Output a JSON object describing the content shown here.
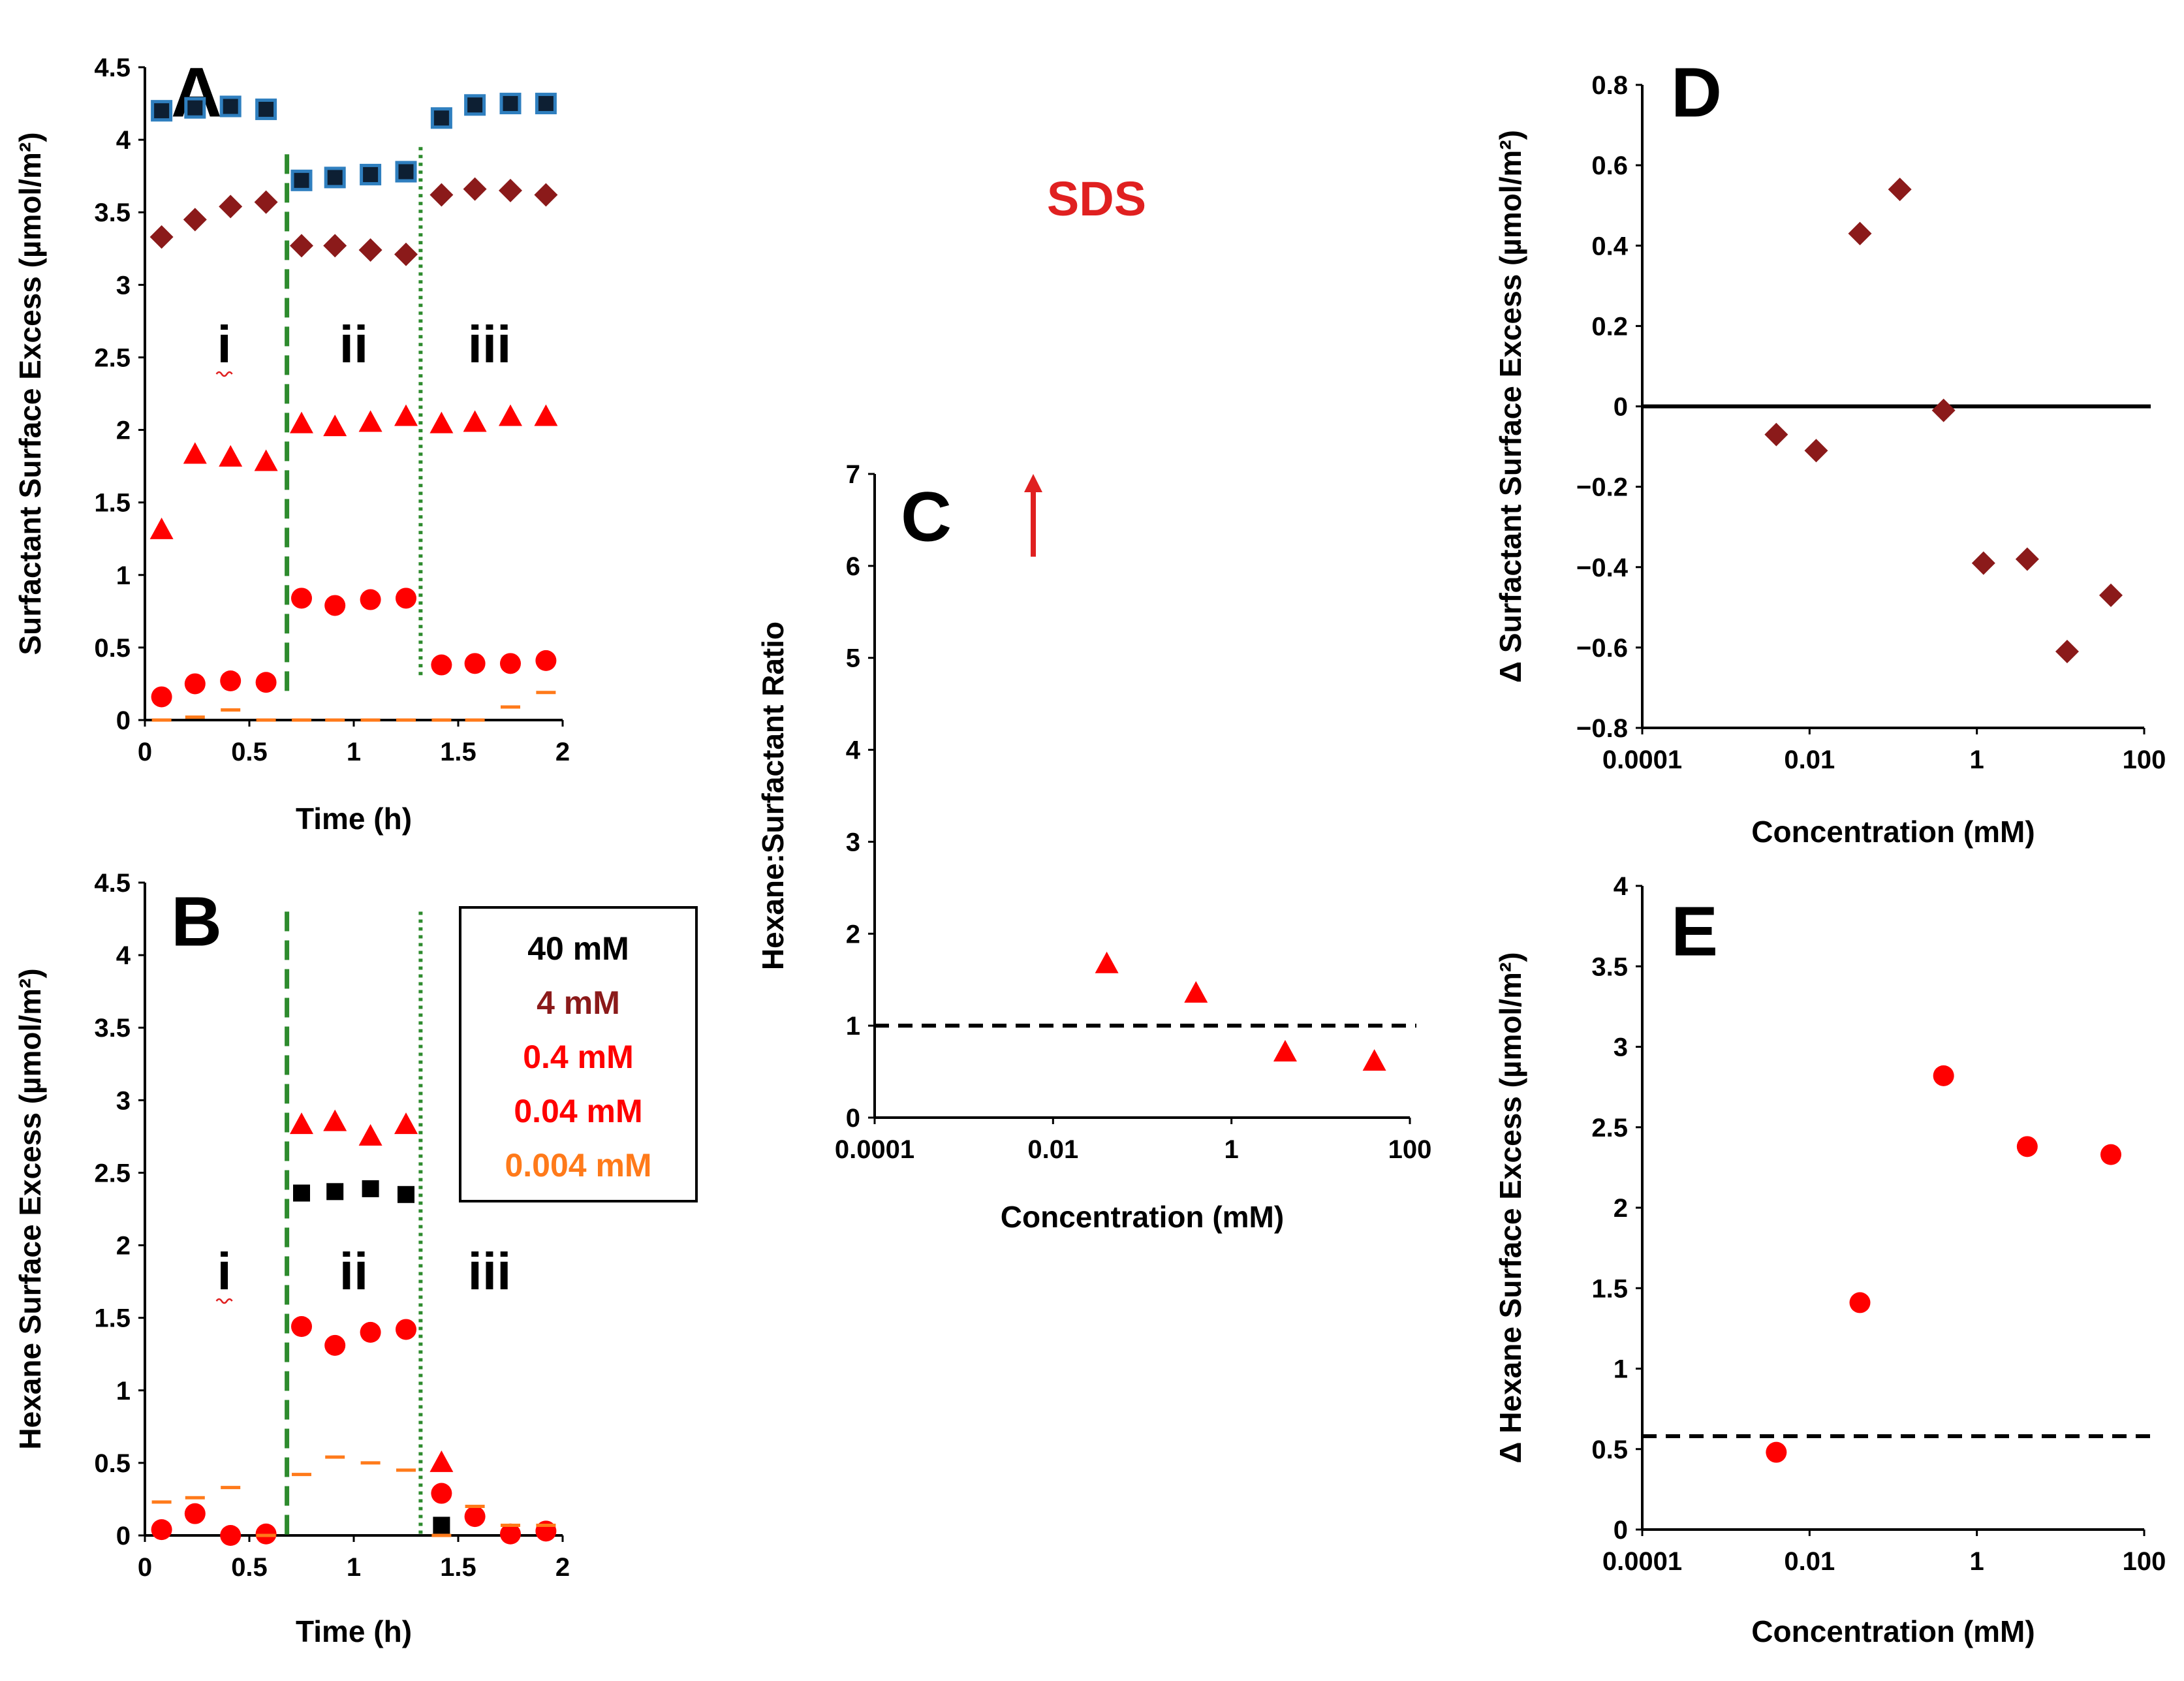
{
  "colors": {
    "c40": "#000000",
    "c4": "#8B1A1A",
    "c04": "#FF0000",
    "c004": "#FF0000",
    "c0004": "#FF7A1A",
    "dash_green": "#2E8B2E",
    "dot_green": "#2E8B2E",
    "square_fill": "#0d1f33",
    "square_edge": "#2F7FBF"
  },
  "figure": {
    "sds_label": "SDS",
    "legend": [
      "40 mM",
      "4 mM",
      "0.4 mM",
      "0.04 mM",
      "0.004 mM"
    ],
    "arrow_note": "up-arrow-icon"
  },
  "chart_data": [
    {
      "panel": "A",
      "type": "scatter",
      "xlabel": "Time (h)",
      "ylabel": "Surfactant Surface Excess (µmol/m²)",
      "xlim": [
        0,
        2
      ],
      "ylim": [
        0,
        4.5
      ],
      "xticks": [
        "0",
        "0.5",
        "1",
        "1.5",
        "2"
      ],
      "yticks": [
        "0",
        "0.5",
        "1",
        "1.5",
        "2",
        "2.5",
        "3",
        "3.5",
        "4",
        "4.5"
      ],
      "regions": [
        "i",
        "ii",
        "iii"
      ],
      "vlines": [
        {
          "x": 0.68,
          "style": "dash"
        },
        {
          "x": 1.32,
          "style": "dot"
        }
      ],
      "series": [
        {
          "name": "40 mM",
          "marker": "square",
          "x": [
            0.08,
            0.24,
            0.41,
            0.58,
            0.75,
            0.91,
            1.08,
            1.25,
            1.42,
            1.58,
            1.75,
            1.92
          ],
          "y": [
            4.2,
            4.22,
            4.23,
            4.21,
            3.72,
            3.74,
            3.76,
            3.78,
            4.15,
            4.24,
            4.25,
            4.25
          ]
        },
        {
          "name": "4 mM",
          "marker": "diamond",
          "x": [
            0.08,
            0.24,
            0.41,
            0.58,
            0.75,
            0.91,
            1.08,
            1.25,
            1.42,
            1.58,
            1.75,
            1.92
          ],
          "y": [
            3.33,
            3.45,
            3.54,
            3.57,
            3.27,
            3.27,
            3.24,
            3.21,
            3.62,
            3.66,
            3.65,
            3.62
          ]
        },
        {
          "name": "0.4 mM",
          "marker": "triangle",
          "x": [
            0.08,
            0.24,
            0.41,
            0.58,
            0.75,
            0.91,
            1.08,
            1.25,
            1.42,
            1.58,
            1.75,
            1.92
          ],
          "y": [
            1.31,
            1.83,
            1.81,
            1.78,
            2.04,
            2.02,
            2.05,
            2.09,
            2.04,
            2.05,
            2.09,
            2.09
          ]
        },
        {
          "name": "0.04 mM",
          "marker": "circle",
          "x": [
            0.08,
            0.24,
            0.41,
            0.58,
            0.75,
            0.91,
            1.08,
            1.25,
            1.42,
            1.58,
            1.75,
            1.92
          ],
          "y": [
            0.16,
            0.25,
            0.27,
            0.26,
            0.84,
            0.79,
            0.83,
            0.84,
            0.38,
            0.39,
            0.39,
            0.41
          ]
        },
        {
          "name": "0.004 mM",
          "marker": "dash",
          "x": [
            0.08,
            0.24,
            0.41,
            0.58,
            0.75,
            0.91,
            1.08,
            1.25,
            1.42,
            1.58,
            1.75,
            1.92
          ],
          "y": [
            0.0,
            0.02,
            0.07,
            0.0,
            0.0,
            0.0,
            0.0,
            0.0,
            0.0,
            0.0,
            0.09,
            0.19
          ]
        }
      ]
    },
    {
      "panel": "B",
      "type": "scatter",
      "xlabel": "Time (h)",
      "ylabel": "Hexane Surface Excess (µmol/m²)",
      "xlim": [
        0,
        2
      ],
      "ylim": [
        0,
        4.5
      ],
      "xticks": [
        "0",
        "0.5",
        "1",
        "1.5",
        "2"
      ],
      "yticks": [
        "0",
        "0.5",
        "1",
        "1.5",
        "2",
        "2.5",
        "3",
        "3.5",
        "4",
        "4.5"
      ],
      "regions": [
        "i",
        "ii",
        "iii"
      ],
      "vlines": [
        {
          "x": 0.68,
          "style": "dash"
        },
        {
          "x": 1.32,
          "style": "dot"
        }
      ],
      "series": [
        {
          "name": "40 mM",
          "marker": "square",
          "x": [
            0.75,
            0.91,
            1.08,
            1.25,
            1.42
          ],
          "y": [
            2.36,
            2.37,
            2.39,
            2.35,
            0.07
          ]
        },
        {
          "name": "0.4 mM",
          "marker": "triangle",
          "x": [
            0.75,
            0.91,
            1.08,
            1.25,
            1.42
          ],
          "y": [
            2.83,
            2.85,
            2.75,
            2.83,
            0.5
          ]
        },
        {
          "name": "0.04 mM",
          "marker": "circle",
          "x": [
            0.08,
            0.24,
            0.41,
            0.58,
            0.75,
            0.91,
            1.08,
            1.25,
            1.42,
            1.58,
            1.75,
            1.92
          ],
          "y": [
            0.04,
            0.15,
            0.0,
            0.01,
            1.44,
            1.31,
            1.4,
            1.42,
            0.29,
            0.13,
            0.01,
            0.03
          ]
        },
        {
          "name": "0.004 mM",
          "marker": "dash",
          "x": [
            0.08,
            0.24,
            0.41,
            0.58,
            0.75,
            0.91,
            1.08,
            1.25,
            1.42,
            1.58,
            1.75,
            1.92
          ],
          "y": [
            0.23,
            0.26,
            0.33,
            0.0,
            0.42,
            0.54,
            0.5,
            0.45,
            0.0,
            0.2,
            0.07,
            0.07
          ]
        }
      ]
    },
    {
      "panel": "C",
      "type": "scatter",
      "xlabel": "Concentration (mM)",
      "ylabel": "Hexane:Surfactant Ratio",
      "xscale": "log",
      "xlim": [
        0.0001,
        100
      ],
      "ylim": [
        0,
        7
      ],
      "xticks": [
        "0.0001",
        "0.01",
        "1",
        "100"
      ],
      "yticks": [
        "0",
        "1",
        "2",
        "3",
        "4",
        "5",
        "6",
        "7"
      ],
      "hline": {
        "y": 1,
        "style": "dash"
      },
      "series": [
        {
          "marker": "triangle",
          "x": [
            0.04,
            0.4,
            4,
            40
          ],
          "y": [
            1.67,
            1.35,
            0.71,
            0.61
          ]
        }
      ],
      "arrow": {
        "x": 0.006,
        "y_from": 6.1,
        "y_to": 7.0
      }
    },
    {
      "panel": "D",
      "type": "scatter",
      "xlabel": "Concentration (mM)",
      "ylabel": "Δ Surfactant Surface Excess (µmol/m²)",
      "xscale": "log",
      "xlim": [
        0.0001,
        100
      ],
      "ylim": [
        -0.8,
        0.8
      ],
      "xticks": [
        "0.0001",
        "0.01",
        "1",
        "100"
      ],
      "yticks": [
        "−0.8",
        "−0.6",
        "−0.4",
        "−0.2",
        "0",
        "0.2",
        "0.4",
        "0.6",
        "0.8"
      ],
      "hline": {
        "y": 0,
        "style": "solid"
      },
      "series": [
        {
          "marker": "diamond",
          "x": [
            0.004,
            0.012,
            0.04,
            0.12,
            0.4,
            1.2,
            4,
            12,
            40
          ],
          "y": [
            -0.07,
            -0.11,
            0.43,
            0.54,
            -0.01,
            -0.39,
            -0.38,
            -0.61,
            -0.47
          ]
        }
      ]
    },
    {
      "panel": "E",
      "type": "scatter",
      "xlabel": "Concentration (mM)",
      "ylabel": "Δ Hexane Surface Excess (µmol/m²)",
      "xscale": "log",
      "xlim": [
        0.0001,
        100
      ],
      "ylim": [
        0,
        4
      ],
      "xticks": [
        "0.0001",
        "0.01",
        "1",
        "100"
      ],
      "yticks": [
        "0",
        "0.5",
        "1",
        "1.5",
        "2",
        "2.5",
        "3",
        "3.5",
        "4"
      ],
      "hline": {
        "y": 0.58,
        "style": "dash"
      },
      "series": [
        {
          "marker": "circle",
          "x": [
            0.004,
            0.04,
            0.4,
            4,
            40
          ],
          "y": [
            0.48,
            1.41,
            2.82,
            2.38,
            2.33
          ]
        }
      ]
    }
  ]
}
